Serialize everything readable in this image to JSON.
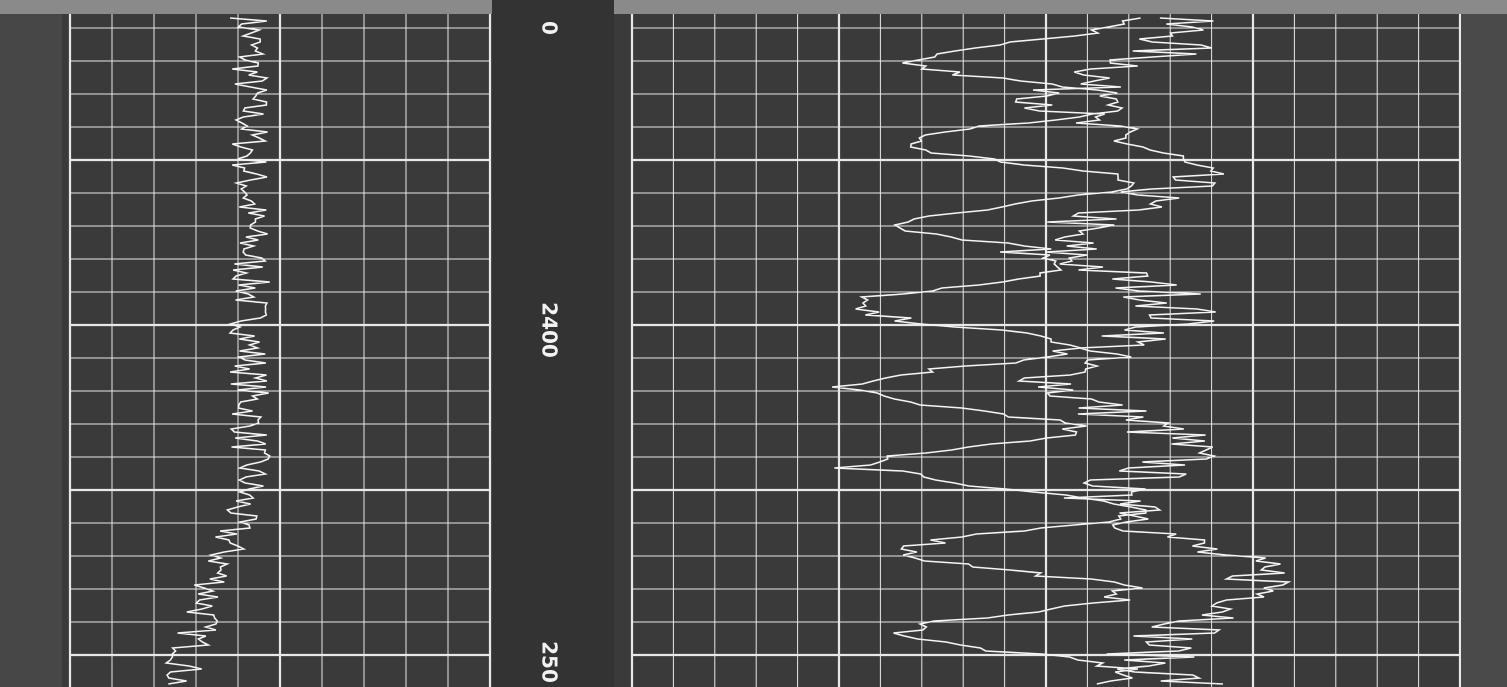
{
  "depth_labels": [
    "0",
    "2400",
    "250"
  ]
}
